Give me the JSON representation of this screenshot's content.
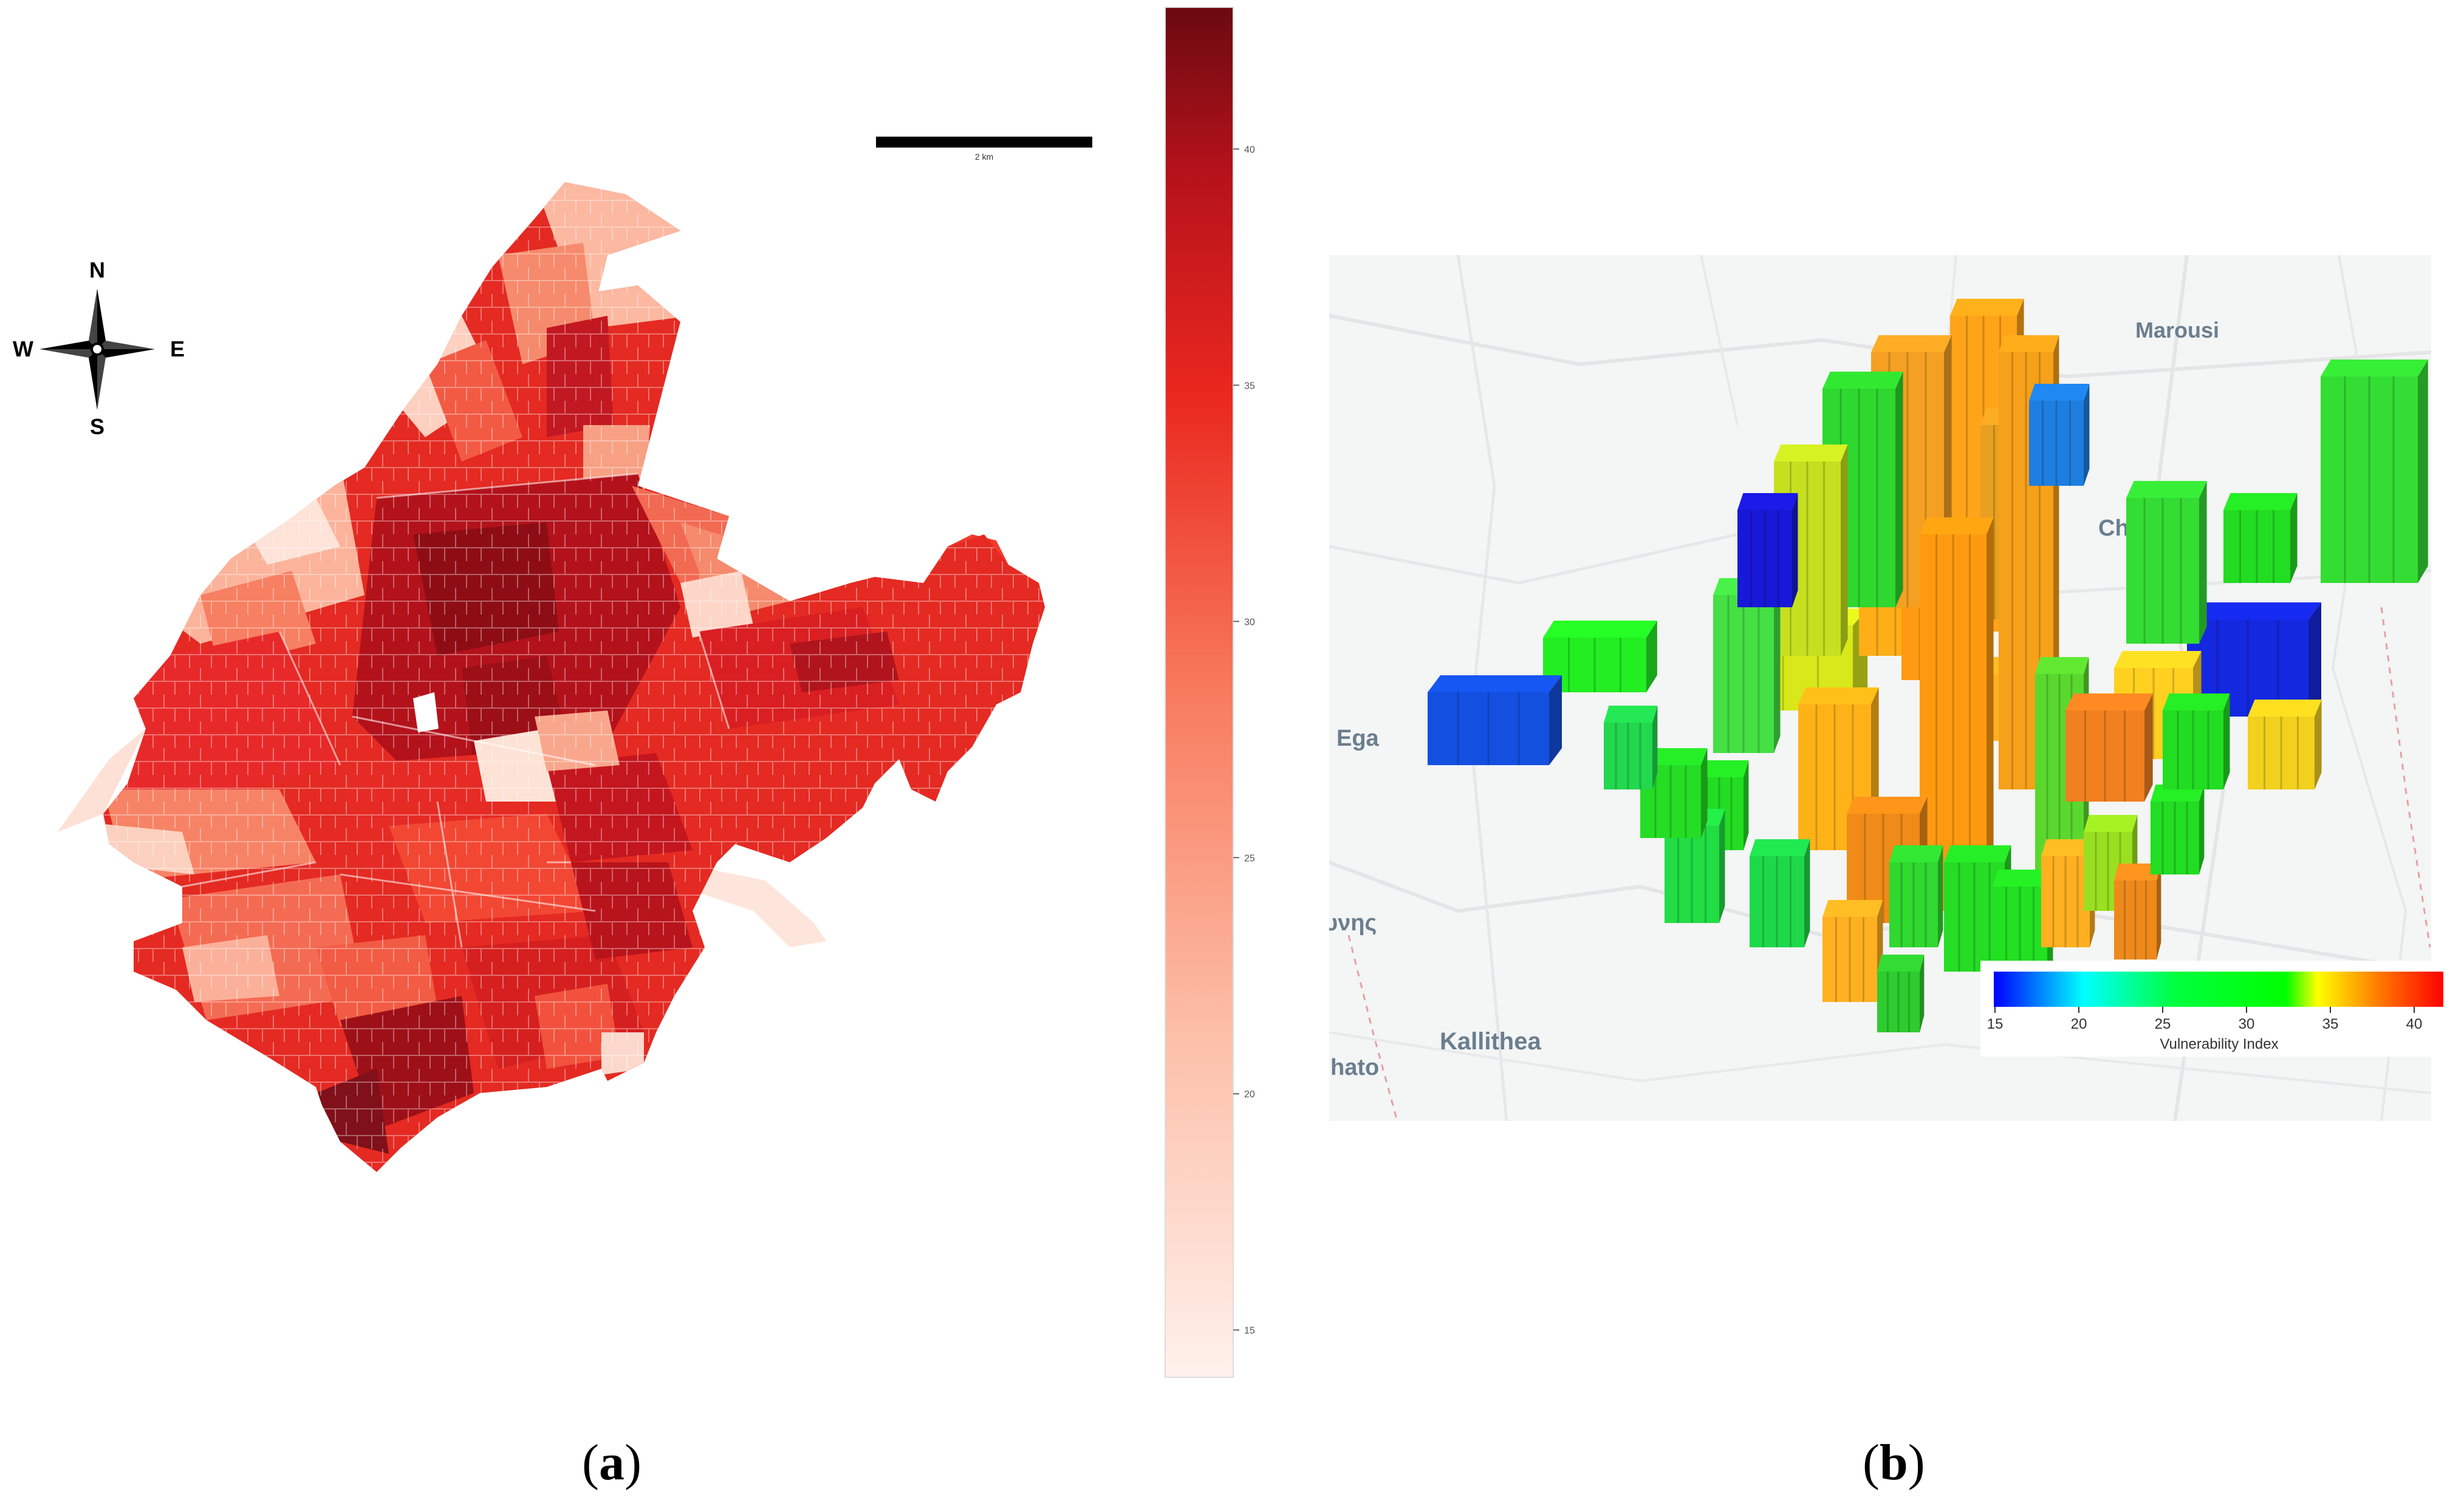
{
  "panel_a": {
    "compass": {
      "n": "N",
      "s": "S",
      "e": "E",
      "w": "W"
    },
    "scale_bar_label": "2 km",
    "colorbar": {
      "ticks": [
        "40",
        "35",
        "30",
        "25",
        "20",
        "15"
      ],
      "range": [
        14,
        43
      ],
      "colors": {
        "low": "#fff1ec",
        "mid": "#f4402c",
        "high": "#6a0a10"
      }
    },
    "caption_letter": "a"
  },
  "panel_b": {
    "basemap_labels": {
      "marousi": "Marousi",
      "chalandri": "Chalandri",
      "ega": "Ega",
      "ynis": "υνης",
      "kallithea": "Kallithea",
      "hato": "hato"
    },
    "legend": {
      "title": "Vulnerability Index",
      "ticks": [
        "15",
        "20",
        "25",
        "30",
        "35",
        "40"
      ],
      "colors": [
        "#0000ff",
        "#00ffff",
        "#00ff00",
        "#ffff00",
        "#ff8000",
        "#ff0000"
      ]
    },
    "caption_letter": "b"
  }
}
